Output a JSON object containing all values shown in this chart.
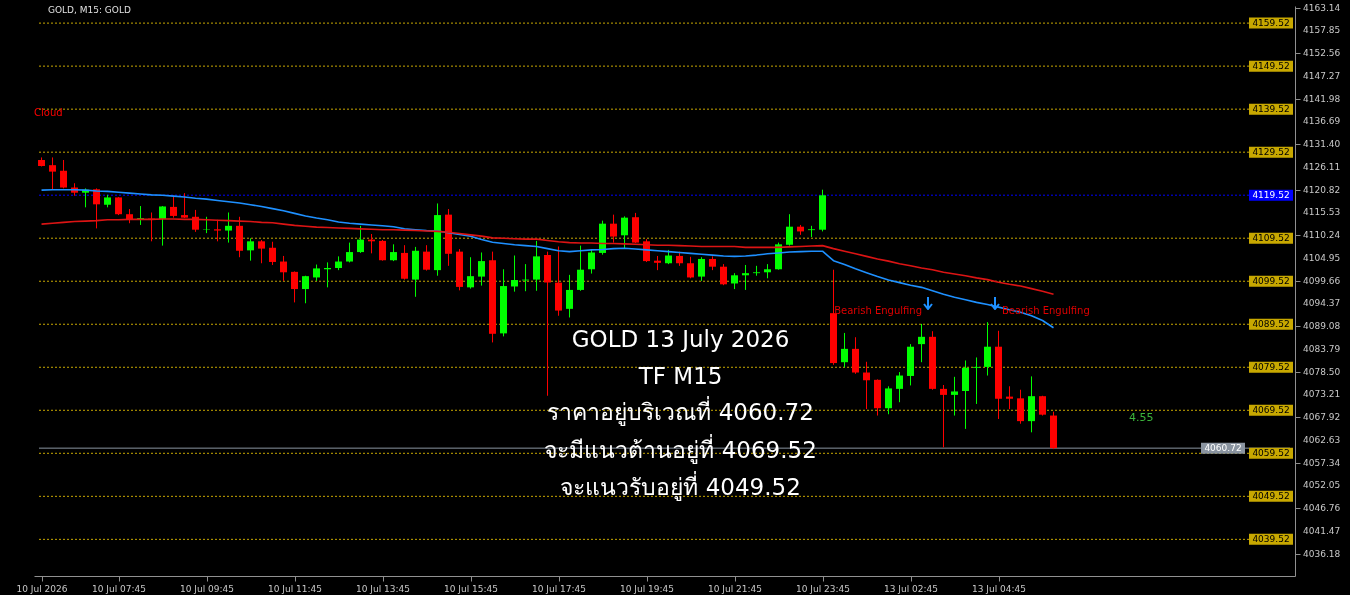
{
  "chart_data": {
    "type": "candlestick",
    "title": "GOLD, M15: GOLD",
    "categories": [
      "10 Jul 2026",
      null,
      null,
      null,
      null,
      null,
      null,
      "10 Jul 07:45",
      null,
      null,
      null,
      null,
      null,
      null,
      null,
      "10 Jul 09:45",
      null,
      null,
      null,
      null,
      null,
      null,
      null,
      "10 Jul 11:45",
      null,
      null,
      null,
      null,
      null,
      null,
      null,
      "10 Jul 13:45",
      null,
      null,
      null,
      null,
      null,
      null,
      null,
      "10 Jul 15:45",
      null,
      null,
      null,
      null,
      null,
      null,
      null,
      "10 Jul 17:45",
      null,
      null,
      null,
      null,
      null,
      null,
      null,
      "10 Jul 19:45",
      null,
      null,
      null,
      null,
      null,
      null,
      null,
      "10 Jul 21:45",
      null,
      null,
      null,
      null,
      null,
      null,
      null,
      "10 Jul 23:45",
      null,
      null,
      null,
      null,
      null,
      null,
      null,
      "13 Jul 02:45",
      null,
      null,
      null,
      null,
      null,
      null,
      null,
      "13 Jul 04:45",
      null,
      null,
      null,
      null,
      null
    ],
    "ohlc": [
      [
        4127.7,
        4128.3,
        4126.2,
        4126.3
      ],
      [
        4126.5,
        4128.3,
        4120.9,
        4125.0
      ],
      [
        4125.2,
        4127.7,
        4121.1,
        4121.3
      ],
      [
        4121.3,
        4122.3,
        4119.4,
        4120.1
      ],
      [
        4120.1,
        4121.1,
        4116.7,
        4120.8
      ],
      [
        4120.9,
        4121.1,
        4111.8,
        4117.4
      ],
      [
        4117.3,
        4119.6,
        4116.7,
        4119.0
      ],
      [
        4119.0,
        4119.1,
        4114.9,
        4115.1
      ],
      [
        4115.1,
        4116.3,
        4113.0,
        4113.8
      ],
      [
        4114.0,
        4117.0,
        4112.6,
        4114.2
      ],
      [
        4114.1,
        4115.5,
        4108.8,
        4114.0
      ],
      [
        4114.0,
        4117.0,
        4107.8,
        4116.9
      ],
      [
        4116.8,
        4119.4,
        4114.3,
        4114.7
      ],
      [
        4114.9,
        4120.0,
        4114.2,
        4114.3
      ],
      [
        4114.5,
        4116.1,
        4111.0,
        4111.5
      ],
      [
        4111.5,
        4114.5,
        4110.7,
        4111.6
      ],
      [
        4111.6,
        4113.8,
        4108.8,
        4111.3
      ],
      [
        4111.3,
        4115.5,
        4108.5,
        4112.4
      ],
      [
        4112.4,
        4114.5,
        4105.1,
        4106.6
      ],
      [
        4106.7,
        4109.5,
        4104.3,
        4108.8
      ],
      [
        4108.8,
        4109.1,
        4103.7,
        4107.1
      ],
      [
        4107.3,
        4108.7,
        4103.3,
        4104.0
      ],
      [
        4104.1,
        4105.4,
        4099.6,
        4101.6
      ],
      [
        4101.7,
        4101.8,
        4094.6,
        4097.7
      ],
      [
        4097.7,
        4100.8,
        4094.4,
        4100.7
      ],
      [
        4100.4,
        4103.4,
        4099.6,
        4102.5
      ],
      [
        4102.3,
        4103.9,
        4098.1,
        4102.6
      ],
      [
        4102.6,
        4105.3,
        4102.1,
        4104.1
      ],
      [
        4104.1,
        4108.5,
        4103.9,
        4106.3
      ],
      [
        4106.3,
        4112.4,
        4106.1,
        4109.2
      ],
      [
        4109.2,
        4110.5,
        4106.0,
        4108.8
      ],
      [
        4108.9,
        4109.1,
        4104.3,
        4104.4
      ],
      [
        4104.4,
        4108.1,
        4104.2,
        4106.3
      ],
      [
        4106.1,
        4107.9,
        4099.9,
        4100.1
      ],
      [
        4099.9,
        4107.5,
        4095.9,
        4106.6
      ],
      [
        4106.4,
        4107.9,
        4102.0,
        4102.2
      ],
      [
        4102.1,
        4117.6,
        4100.8,
        4114.9
      ],
      [
        4115.0,
        4116.3,
        4103.1,
        4105.9
      ],
      [
        4106.4,
        4107.0,
        4097.4,
        4098.2
      ],
      [
        4098.1,
        4105.1,
        4097.8,
        4100.7
      ],
      [
        4100.6,
        4106.2,
        4098.5,
        4104.2
      ],
      [
        4104.4,
        4106.4,
        4085.3,
        4087.3
      ],
      [
        4087.4,
        4102.3,
        4086.7,
        4098.4
      ],
      [
        4098.3,
        4105.5,
        4097.1,
        4099.8
      ],
      [
        4099.7,
        4103.5,
        4097.2,
        4099.9
      ],
      [
        4099.9,
        4108.9,
        4097.3,
        4105.3
      ],
      [
        4105.6,
        4106.4,
        4072.9,
        4099.2
      ],
      [
        4099.2,
        4107.6,
        4091.5,
        4092.7
      ],
      [
        4093.1,
        4101.0,
        4091.1,
        4097.5
      ],
      [
        4097.5,
        4107.8,
        4097.3,
        4102.2
      ],
      [
        4102.3,
        4107.0,
        4101.3,
        4106.2
      ],
      [
        4106.1,
        4113.6,
        4105.7,
        4112.9
      ],
      [
        4112.9,
        4115.0,
        4108.5,
        4109.9
      ],
      [
        4110.2,
        4114.6,
        4107.1,
        4114.3
      ],
      [
        4114.4,
        4115.4,
        4108.4,
        4108.5
      ],
      [
        4108.8,
        4109.3,
        4104.0,
        4104.2
      ],
      [
        4104.3,
        4105.4,
        4102.1,
        4103.8
      ],
      [
        4103.7,
        4106.8,
        4103.5,
        4105.5
      ],
      [
        4105.4,
        4106.4,
        4103.1,
        4103.7
      ],
      [
        4103.7,
        4105.2,
        4100.2,
        4100.4
      ],
      [
        4100.6,
        4105.1,
        4099.6,
        4104.7
      ],
      [
        4104.7,
        4105.3,
        4102.1,
        4102.9
      ],
      [
        4102.9,
        4103.5,
        4098.6,
        4098.8
      ],
      [
        4099.0,
        4101.4,
        4097.7,
        4100.9
      ],
      [
        4100.9,
        4103.3,
        4097.5,
        4101.4
      ],
      [
        4101.4,
        4103.1,
        4100.8,
        4101.6
      ],
      [
        4101.6,
        4103.5,
        4100.2,
        4102.3
      ],
      [
        4102.3,
        4108.5,
        4102.2,
        4108.1
      ],
      [
        4108.0,
        4115.1,
        4107.8,
        4112.2
      ],
      [
        4112.2,
        4112.6,
        4110.3,
        4111.1
      ],
      [
        4111.4,
        4112.4,
        4109.8,
        4111.6
      ],
      [
        4111.5,
        4120.8,
        4111.1,
        4119.5
      ],
      [
        4092.1,
        4102.2,
        4080.1,
        4080.5
      ],
      [
        4080.7,
        4087.5,
        4079.5,
        4083.8
      ],
      [
        4083.8,
        4086.5,
        4078.0,
        4078.3
      ],
      [
        4078.3,
        4080.8,
        4069.8,
        4076.5
      ],
      [
        4076.6,
        4076.7,
        4068.3,
        4070.0
      ],
      [
        4070.0,
        4075.1,
        4068.6,
        4074.6
      ],
      [
        4074.5,
        4078.4,
        4071.4,
        4077.6
      ],
      [
        4077.5,
        4084.9,
        4075.3,
        4084.3
      ],
      [
        4084.9,
        4089.6,
        4080.7,
        4086.6
      ],
      [
        4086.6,
        4087.9,
        4074.3,
        4074.5
      ],
      [
        4074.5,
        4075.4,
        4060.9,
        4073.1
      ],
      [
        4073.1,
        4077.3,
        4068.3,
        4073.9
      ],
      [
        4074.0,
        4081.1,
        4065.2,
        4079.4
      ],
      [
        4079.4,
        4081.8,
        4071.0,
        4079.6
      ],
      [
        4079.6,
        4090.0,
        4077.6,
        4084.3
      ],
      [
        4084.3,
        4088.0,
        4067.5,
        4072.2
      ],
      [
        4072.7,
        4075.1,
        4069.8,
        4072.2
      ],
      [
        4072.3,
        4074.3,
        4066.4,
        4067.0
      ],
      [
        4067.0,
        4077.4,
        4064.4,
        4072.8
      ],
      [
        4072.8,
        4072.9,
        4068.3,
        4068.5
      ],
      [
        4068.3,
        4069.2,
        4060.5,
        4060.72
      ]
    ],
    "colors": [
      "#ff0000",
      "#ff0000",
      "#ff0000",
      "#ff0000",
      "#00ff00",
      "#ff0000",
      "#00ff00",
      "#ff0000",
      "#ff0000",
      "#00ff00",
      "#ff0000",
      "#00ff00",
      "#ff0000",
      "#ff0000",
      "#ff0000",
      "#00ff00",
      "#ff0000",
      "#00ff00",
      "#ff0000",
      "#00ff00",
      "#ff0000",
      "#ff0000",
      "#ff0000",
      "#ff0000",
      "#00ff00",
      "#00ff00",
      "#00ff00",
      "#00ff00",
      "#00ff00",
      "#00ff00",
      "#ff0000",
      "#ff0000",
      "#00ff00",
      "#ff0000",
      "#00ff00",
      "#ff0000",
      "#00ff00",
      "#ff0000",
      "#ff0000",
      "#00ff00",
      "#00ff00",
      "#ff0000",
      "#00ff00",
      "#00ff00",
      "#00ff00",
      "#00ff00",
      "#ff0000",
      "#ff0000",
      "#00ff00",
      "#00ff00",
      "#00ff00",
      "#00ff00",
      "#ff0000",
      "#00ff00",
      "#ff0000",
      "#ff0000",
      "#ff0000",
      "#00ff00",
      "#ff0000",
      "#ff0000",
      "#00ff00",
      "#ff0000",
      "#ff0000",
      "#00ff00",
      "#00ff00",
      "#00ff00",
      "#00ff00",
      "#00ff00",
      "#00ff00",
      "#ff0000",
      "#00ff00",
      "#00ff00",
      "#ff0000",
      "#00ff00",
      "#ff0000",
      "#ff0000",
      "#ff0000",
      "#00ff00",
      "#00ff00",
      "#00ff00",
      "#00ff00",
      "#ff0000",
      "#ff0000",
      "#00ff00",
      "#00ff00",
      "#00ff00",
      "#00ff00",
      "#ff0000",
      "#ff0000",
      "#ff0000",
      "#00ff00",
      "#ff0000",
      "#ff0000"
    ],
    "series": [
      {
        "type": "line",
        "color": "#1e90ff",
        "values": [
          4120.7,
          4120.8,
          4120.8,
          4120.8,
          4120.7,
          4120.5,
          4120.4,
          4120.2,
          4120.0,
          4119.8,
          4119.6,
          4119.5,
          4119.3,
          4119.1,
          4118.8,
          4118.6,
          4118.3,
          4118.0,
          4117.7,
          4117.3,
          4116.9,
          4116.4,
          4115.9,
          4115.3,
          4114.7,
          4114.2,
          4113.8,
          4113.3,
          4113.0,
          4112.8,
          4112.6,
          4112.4,
          4112.2,
          4111.7,
          4111.5,
          4111.3,
          4111.2,
          4110.8,
          4110.4,
          4110.0,
          4109.2,
          4108.6,
          4108.3,
          4108.0,
          4107.8,
          4107.6,
          4107.1,
          4106.6,
          4106.4,
          4106.6,
          4106.8,
          4106.9,
          4107.1,
          4107.2,
          4107.0,
          4106.8,
          4106.6,
          4106.4,
          4106.2,
          4106.0,
          4105.8,
          4105.6,
          4105.4,
          4105.3,
          4105.4,
          4105.6,
          4105.9,
          4106.1,
          4106.3,
          4106.4,
          4106.5,
          4106.5,
          4104.3,
          4103.4,
          4102.4,
          4101.5,
          4100.6,
          4099.8,
          4099.2,
          4098.6,
          4098.1,
          4097.3,
          4096.5,
          4095.8,
          4095.2,
          4094.6,
          4094.1,
          4093.5,
          4092.9,
          4092.3,
          4091.5,
          4090.4,
          4088.7
        ]
      },
      {
        "type": "line",
        "color": "#dc1414",
        "values": [
          4112.8,
          4113.0,
          4113.2,
          4113.4,
          4113.5,
          4113.6,
          4113.8,
          4113.8,
          4113.9,
          4113.9,
          4113.9,
          4114.0,
          4114.0,
          4113.9,
          4113.9,
          4113.8,
          4113.7,
          4113.6,
          4113.5,
          4113.4,
          4113.2,
          4113.1,
          4112.8,
          4112.5,
          4112.3,
          4112.1,
          4112.0,
          4111.9,
          4111.8,
          4111.7,
          4111.6,
          4111.5,
          4111.5,
          4111.4,
          4111.3,
          4111.2,
          4111.1,
          4110.9,
          4110.6,
          4110.3,
          4110.0,
          4109.6,
          4109.5,
          4109.4,
          4109.3,
          4109.3,
          4109.0,
          4108.7,
          4108.5,
          4108.4,
          4108.4,
          4108.3,
          4108.3,
          4108.2,
          4108.1,
          4108.0,
          4107.9,
          4107.9,
          4107.8,
          4107.7,
          4107.6,
          4107.6,
          4107.6,
          4107.6,
          4107.4,
          4107.4,
          4107.4,
          4107.4,
          4107.5,
          4107.6,
          4107.7,
          4107.8,
          4107.1,
          4106.5,
          4105.9,
          4105.3,
          4104.7,
          4104.2,
          4103.6,
          4103.1,
          4102.6,
          4102.2,
          4101.6,
          4101.2,
          4100.8,
          4100.3,
          4099.9,
          4099.3,
          4098.8,
          4098.4,
          4097.8,
          4097.2,
          4096.5
        ]
      }
    ],
    "ylim": [
      4031,
      4163.5
    ],
    "yticks": [
      4163.14,
      4157.85,
      4152.56,
      4147.27,
      4141.98,
      4136.69,
      {
        "value": 4131.4,
        "label": "4131.40"
      },
      4126.11,
      4120.82,
      4115.53,
      4110.24,
      4104.95,
      4099.66,
      4094.37,
      4089.08,
      4083.79,
      {
        "value": 4078.5,
        "label": "4078.50"
      },
      4073.21,
      4067.92,
      4062.63,
      4057.34,
      4052.05,
      4046.76,
      4041.47,
      4036.18
    ],
    "ref_lines": [
      {
        "axis": "y",
        "value": 4159.52,
        "label": "4159.52",
        "color": "#c8a800",
        "line_style": "dotted"
      },
      {
        "axis": "y",
        "value": 4149.52,
        "label": "4149.52",
        "color": "#c8a800",
        "line_style": "dotted"
      },
      {
        "axis": "y",
        "value": 4139.52,
        "label": "4139.52",
        "color": "#c8a800",
        "line_style": "dotted"
      },
      {
        "axis": "y",
        "value": 4129.52,
        "label": "4129.52",
        "color": "#c8a800",
        "line_style": "dotted"
      },
      {
        "axis": "y",
        "value": 4119.52,
        "label": "4119.52",
        "color": "#0000ff",
        "line_style": "dotted"
      },
      {
        "axis": "y",
        "value": 4109.52,
        "label": "4109.52",
        "color": "#c8a800",
        "line_style": "dotted"
      },
      {
        "axis": "y",
        "value": 4099.52,
        "label": "4099.52",
        "color": "#c8a800",
        "line_style": "dotted"
      },
      {
        "axis": "y",
        "value": 4089.52,
        "label": "4089.52",
        "color": "#c8a800",
        "line_style": "dotted"
      },
      {
        "axis": "y",
        "value": 4079.52,
        "label": "4079.52",
        "color": "#c8a800",
        "line_style": "dotted"
      },
      {
        "axis": "y",
        "value": 4069.52,
        "label": "4069.52",
        "color": "#c8a800",
        "line_style": "dotted"
      },
      {
        "axis": "y",
        "value": 4060.72,
        "label": "4060.72",
        "color": "#8a94a0",
        "line_style": "solid"
      },
      {
        "axis": "y",
        "value": 4059.52,
        "label": "4059.52",
        "color": "#c8a800",
        "line_style": "dotted"
      },
      {
        "axis": "y",
        "value": 4049.52,
        "label": "4049.52",
        "color": "#c8a800",
        "line_style": "dotted"
      },
      {
        "axis": "y",
        "value": 4039.52,
        "label": "4039.52",
        "color": "#c8a800",
        "line_style": "dotted"
      }
    ],
    "annotations": [
      "Cloud",
      "Bearish Engulfing",
      "Bearish Engulfing",
      "GOLD 13 July 2026",
      "TF M15",
      "ราคาอยู่บริเวณที่ 4060.72",
      "จะมีแนวต้านอยู่ที่ 4069.52",
      "จะแนวรับอยู่ที่ 4049.52",
      "4.55"
    ]
  }
}
